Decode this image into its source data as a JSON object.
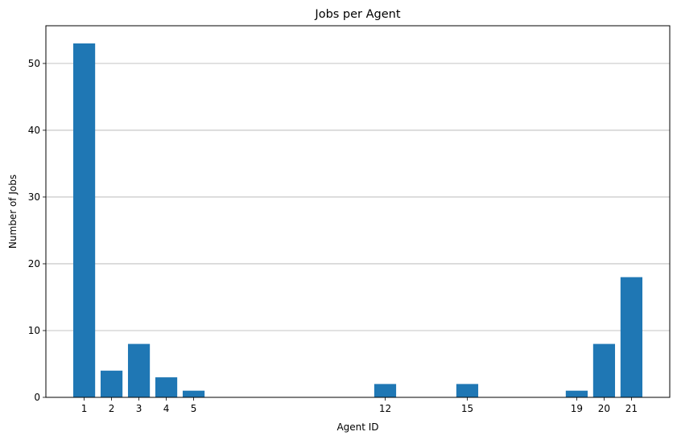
{
  "chart_data": {
    "type": "bar",
    "title": "Jobs per Agent",
    "xlabel": "Agent ID",
    "ylabel": "Number of Jobs",
    "x": [
      1,
      2,
      3,
      4,
      5,
      12,
      15,
      19,
      20,
      21
    ],
    "categories": [
      "1",
      "2",
      "3",
      "4",
      "5",
      "12",
      "15",
      "19",
      "20",
      "21"
    ],
    "values": [
      53,
      4,
      8,
      3,
      1,
      2,
      2,
      1,
      8,
      18
    ],
    "xlim": [
      -0.4,
      22.4
    ],
    "ylim": [
      0,
      55.65
    ],
    "yticks": [
      0,
      10,
      20,
      30,
      40,
      50
    ],
    "grid": "y-axis major gridlines",
    "legend": "none",
    "bar_color": "#1f77b4",
    "grid_color": "#b0b0b0"
  }
}
